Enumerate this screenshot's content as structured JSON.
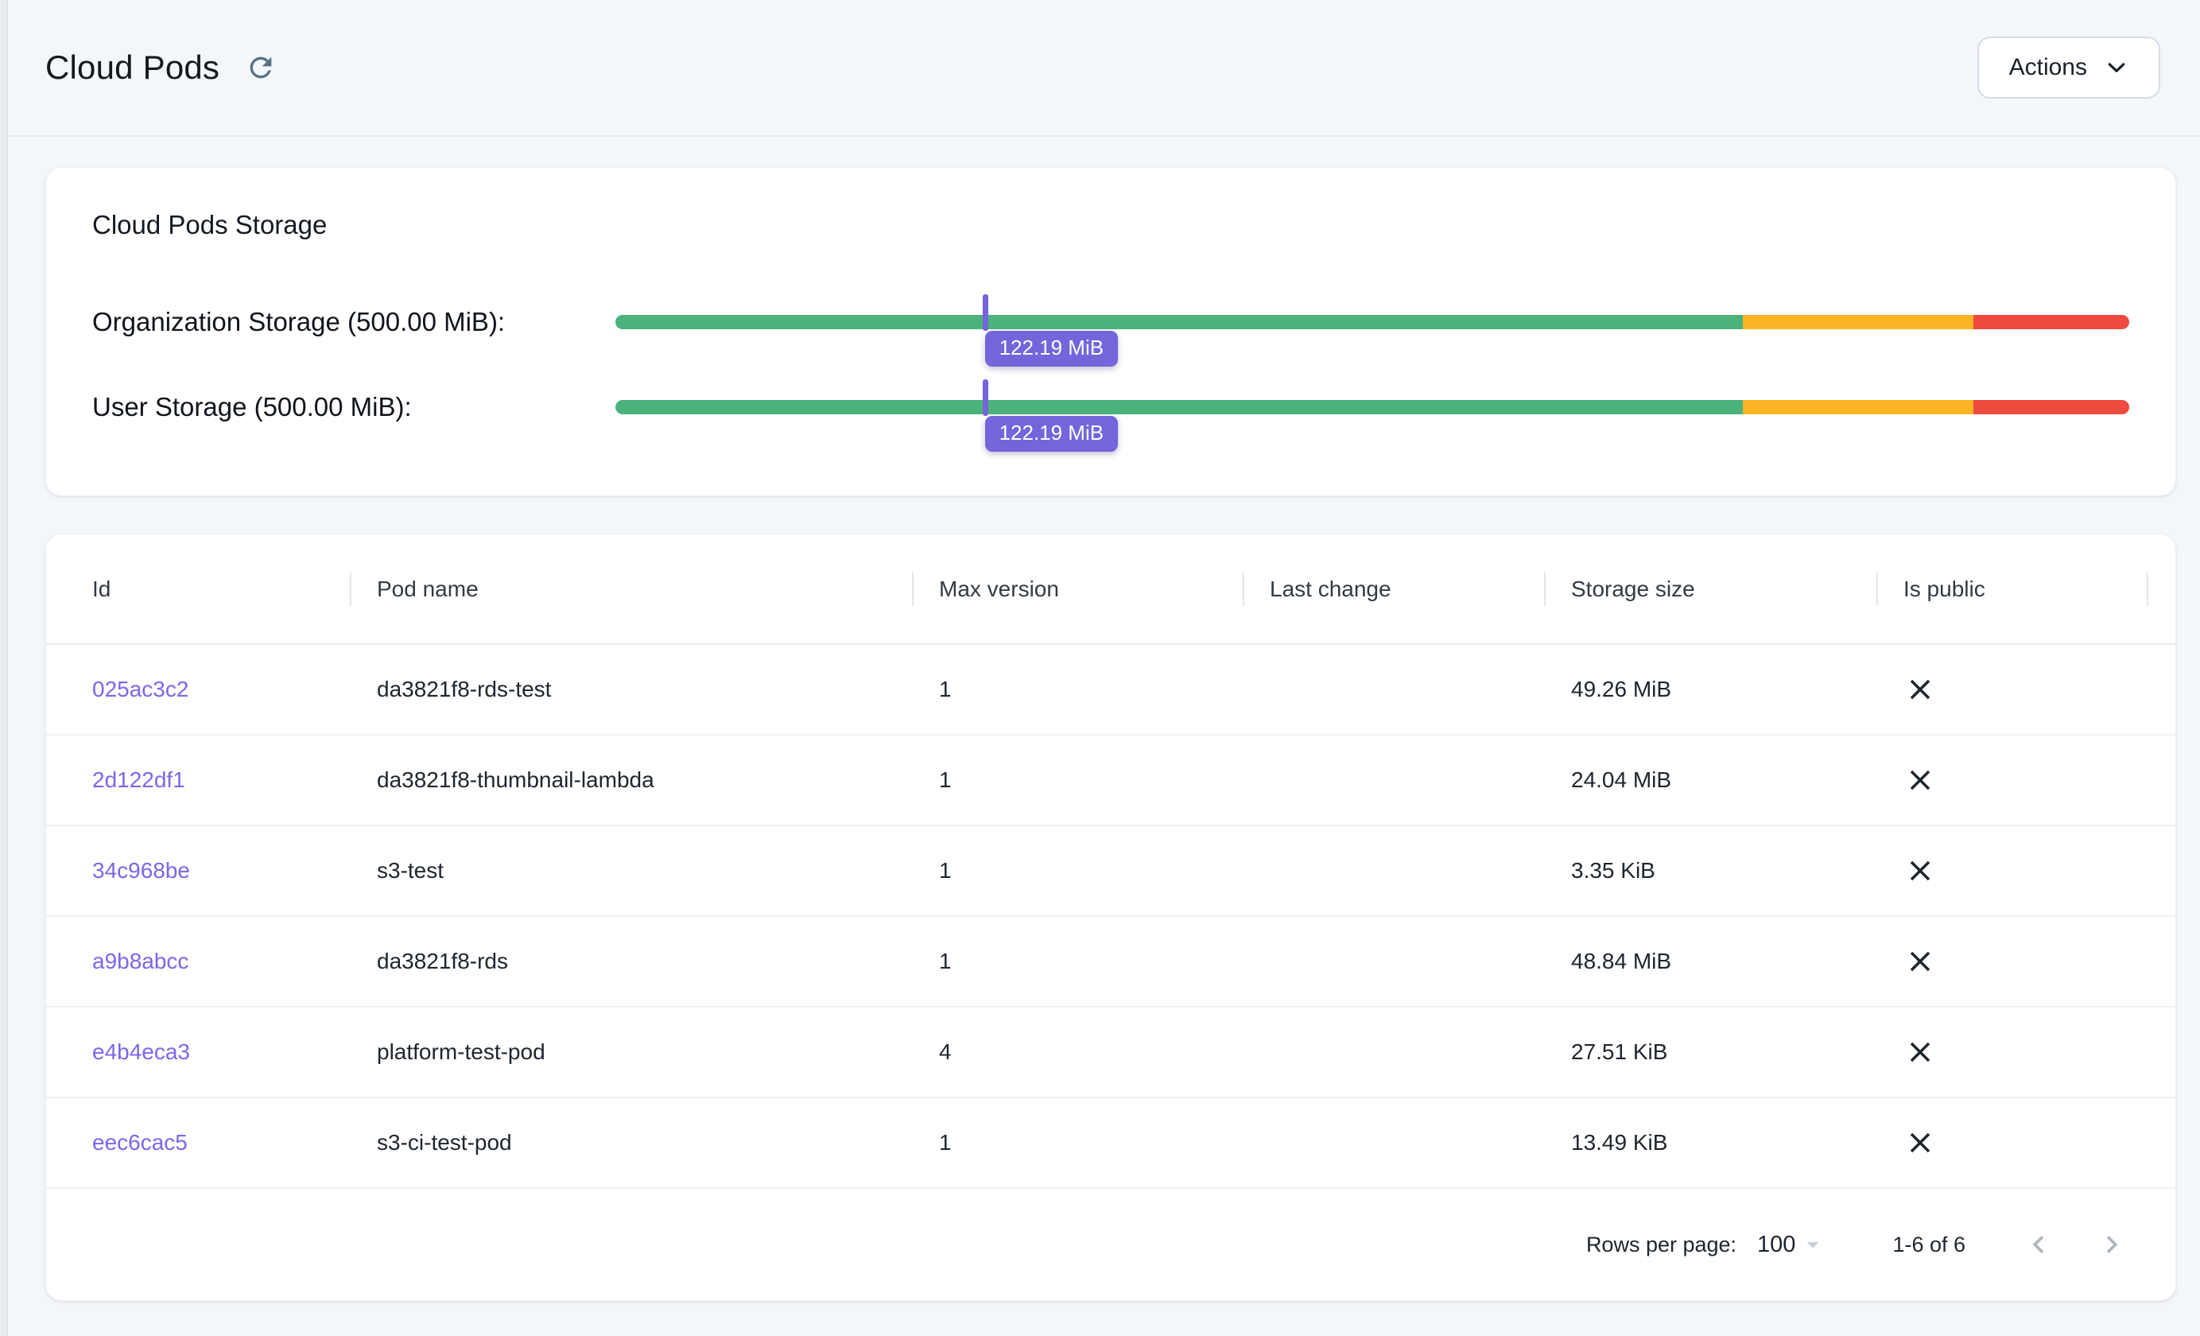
{
  "header": {
    "title": "Cloud Pods",
    "actions_label": "Actions"
  },
  "storage_card": {
    "title": "Cloud Pods Storage",
    "bars": [
      {
        "label": "Organization Storage (500.00 MiB):",
        "value_label": "122.19 MiB",
        "percent": 24.4,
        "thresholds": {
          "green_end": 74.5,
          "amber_end": 89.7
        }
      },
      {
        "label": "User Storage (500.00 MiB):",
        "value_label": "122.19 MiB",
        "percent": 24.4,
        "thresholds": {
          "green_end": 74.5,
          "amber_end": 89.7
        }
      }
    ]
  },
  "table": {
    "columns": [
      "Id",
      "Pod name",
      "Max version",
      "Last change",
      "Storage size",
      "Is public"
    ],
    "rows": [
      {
        "id": "025ac3c2",
        "pod_name": "da3821f8-rds-test",
        "max_version": "1",
        "last_change": "",
        "storage_size": "49.26 MiB",
        "is_public": false
      },
      {
        "id": "2d122df1",
        "pod_name": "da3821f8-thumbnail-lambda",
        "max_version": "1",
        "last_change": "",
        "storage_size": "24.04 MiB",
        "is_public": false
      },
      {
        "id": "34c968be",
        "pod_name": "s3-test",
        "max_version": "1",
        "last_change": "",
        "storage_size": "3.35 KiB",
        "is_public": false
      },
      {
        "id": "a9b8abcc",
        "pod_name": "da3821f8-rds",
        "max_version": "1",
        "last_change": "",
        "storage_size": "48.84 MiB",
        "is_public": false
      },
      {
        "id": "e4b4eca3",
        "pod_name": "platform-test-pod",
        "max_version": "4",
        "last_change": "",
        "storage_size": "27.51 KiB",
        "is_public": false
      },
      {
        "id": "eec6cac5",
        "pod_name": "s3-ci-test-pod",
        "max_version": "1",
        "last_change": "",
        "storage_size": "13.49 KiB",
        "is_public": false
      }
    ],
    "pagination": {
      "rows_per_page_label": "Rows per page:",
      "rows_per_page_value": "100",
      "range_label": "1-6 of 6"
    }
  },
  "colors": {
    "page-bg": "#F4F7FA",
    "accent-purple": "#7465DA",
    "link-purple": "#7A68E8",
    "green": "#4BB27B",
    "amber": "#FCB324",
    "red": "#EE4A3F",
    "refresh": "#5A7184",
    "icon-muted": "#ADB5BE"
  }
}
